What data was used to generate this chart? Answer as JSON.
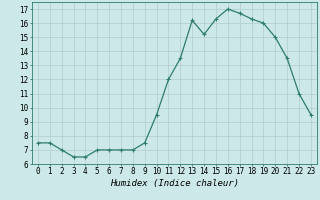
{
  "x": [
    0,
    1,
    2,
    3,
    4,
    5,
    6,
    7,
    8,
    9,
    10,
    11,
    12,
    13,
    14,
    15,
    16,
    17,
    18,
    19,
    20,
    21,
    22,
    23
  ],
  "y": [
    7.5,
    7.5,
    7.0,
    6.5,
    6.5,
    7.0,
    7.0,
    7.0,
    7.0,
    7.5,
    9.5,
    12.0,
    13.5,
    16.2,
    15.2,
    16.3,
    17.0,
    16.7,
    16.3,
    16.0,
    15.0,
    13.5,
    11.0,
    9.5
  ],
  "line_color": "#2e7d6e",
  "marker": "+",
  "marker_size": 3,
  "marker_linewidth": 0.8,
  "bg_color": "#cce8e8",
  "grid_color": "#b0cccc",
  "xlabel": "Humidex (Indice chaleur)",
  "xlim": [
    -0.5,
    23.5
  ],
  "ylim": [
    6.0,
    17.5
  ],
  "xtick_labels": [
    "0",
    "1",
    "2",
    "3",
    "4",
    "5",
    "6",
    "7",
    "8",
    "9",
    "10",
    "11",
    "12",
    "13",
    "14",
    "15",
    "16",
    "17",
    "18",
    "19",
    "20",
    "21",
    "22",
    "23"
  ],
  "yticks": [
    6,
    7,
    8,
    9,
    10,
    11,
    12,
    13,
    14,
    15,
    16,
    17
  ],
  "axis_fontsize": 6.5,
  "tick_fontsize": 5.5,
  "linewidth": 0.9
}
